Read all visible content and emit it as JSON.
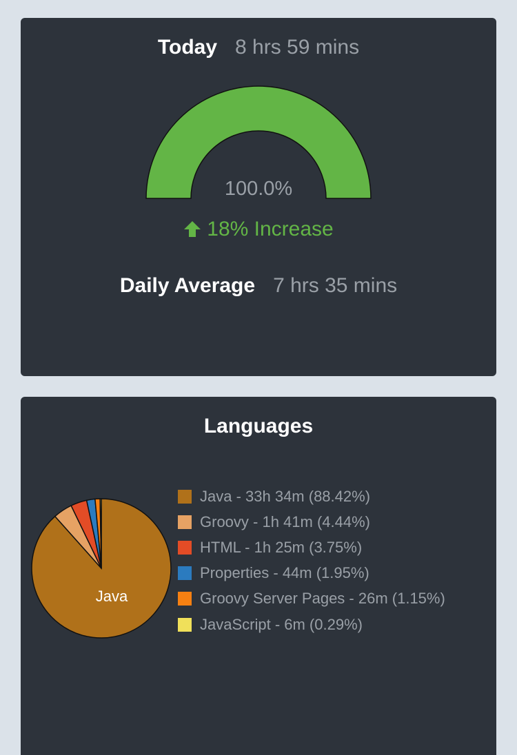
{
  "today": {
    "label": "Today",
    "value": "8 hrs 59 mins",
    "gauge_percent_text": "100.0%",
    "gauge_fraction": 1.0,
    "gauge_color": "#63b546",
    "change_text": "18% Increase",
    "change_direction": "up",
    "change_icon": "arrow-up-icon",
    "change_color": "#63b546"
  },
  "daily_average": {
    "label": "Daily Average",
    "value": "7 hrs 35 mins"
  },
  "languages": {
    "title": "Languages",
    "pie_center_label": "Java"
  },
  "chart_data": {
    "type": "pie",
    "title": "Languages",
    "slices": [
      {
        "name": "Java",
        "time": "33h 34m",
        "percent": 88.42,
        "color": "#b0711a",
        "legend": "Java - 33h 34m (88.42%)"
      },
      {
        "name": "Groovy",
        "time": "1h 41m",
        "percent": 4.44,
        "color": "#e6a264",
        "legend": "Groovy - 1h 41m (4.44%)"
      },
      {
        "name": "HTML",
        "time": "1h 25m",
        "percent": 3.75,
        "color": "#e34c26",
        "legend": "HTML - 1h 25m (3.75%)"
      },
      {
        "name": "Properties",
        "time": "44m",
        "percent": 1.95,
        "color": "#2b7bbf",
        "legend": "Properties - 44m (1.95%)"
      },
      {
        "name": "Groovy Server Pages",
        "time": "26m",
        "percent": 1.15,
        "color": "#f68012",
        "legend": "Groovy Server Pages - 26m (1.15%)"
      },
      {
        "name": "JavaScript",
        "time": "6m",
        "percent": 0.29,
        "color": "#f0e05a",
        "legend": "JavaScript - 6m (0.29%)"
      }
    ],
    "legend_position": "right"
  }
}
